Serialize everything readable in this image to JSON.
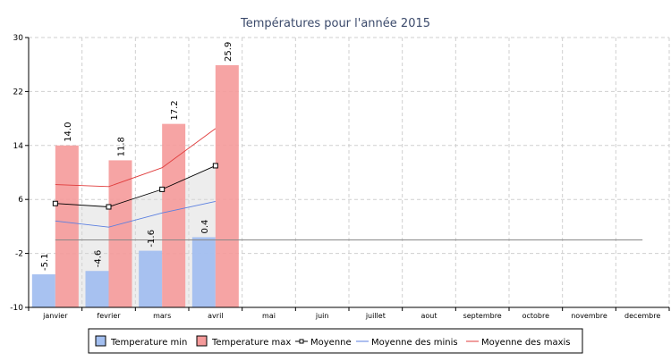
{
  "chart_data": {
    "type": "bar",
    "title": "Températures pour l'année 2015",
    "xlabel": "",
    "ylabel": "",
    "ylim": [
      -10,
      30
    ],
    "yticks": [
      -10,
      -2,
      6,
      14,
      22,
      30
    ],
    "grid": true,
    "legend_position": "bottom",
    "categories": [
      "janvier",
      "fevrier",
      "mars",
      "avril",
      "mai",
      "juin",
      "juillet",
      "aout",
      "septembre",
      "octobre",
      "novembre",
      "decembre"
    ],
    "series": [
      {
        "name": "Temperature min",
        "kind": "bar",
        "color": "#a3bff0",
        "values": [
          -5.1,
          -4.6,
          -1.6,
          0.4,
          null,
          null,
          null,
          null,
          null,
          null,
          null,
          null
        ],
        "labels": [
          "-5.1",
          "-4.6",
          "-1.6",
          "0.4",
          null,
          null,
          null,
          null,
          null,
          null,
          null,
          null
        ]
      },
      {
        "name": "Temperature max",
        "kind": "bar",
        "color": "#f59a9a",
        "values": [
          14.0,
          11.8,
          17.2,
          25.9,
          null,
          null,
          null,
          null,
          null,
          null,
          null,
          null
        ],
        "labels": [
          "14.0",
          "11.8",
          "17.2",
          "25.9",
          null,
          null,
          null,
          null,
          null,
          null,
          null,
          null
        ]
      },
      {
        "name": "Moyenne",
        "kind": "line-markers",
        "color": "#000000",
        "values": [
          5.4,
          4.9,
          7.5,
          11.0,
          null,
          null,
          null,
          null,
          null,
          null,
          null,
          null
        ]
      },
      {
        "name": "Moyenne des minis",
        "kind": "line",
        "color": "#5b7fe0",
        "values": [
          2.8,
          1.9,
          4.0,
          5.7,
          null,
          null,
          null,
          null,
          null,
          null,
          null,
          null
        ]
      },
      {
        "name": "Moyenne des maxis",
        "kind": "line",
        "color": "#e03c3c",
        "values": [
          8.2,
          7.9,
          10.7,
          16.5,
          null,
          null,
          null,
          null,
          null,
          null,
          null,
          null
        ]
      }
    ],
    "reference_line": {
      "value": 0,
      "color": "#888888"
    },
    "band_fill": "#d8d8d8"
  }
}
